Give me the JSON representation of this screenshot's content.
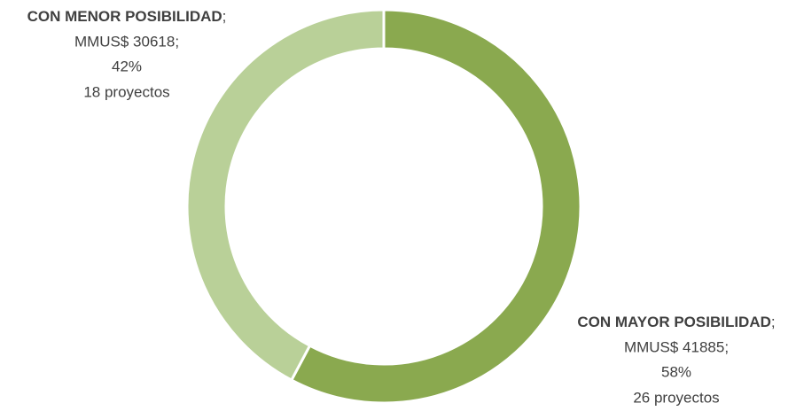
{
  "chart_data": {
    "type": "donut",
    "categories": [
      "CON MAYOR POSIBILIDAD",
      "CON MENOR POSIBILIDAD"
    ],
    "values": [
      41885,
      30618
    ],
    "value_labels": [
      "MMUS$ 41885;",
      "MMUS$ 30618;"
    ],
    "percent_labels": [
      "58%",
      "42%"
    ],
    "project_labels": [
      "26 proyectos",
      "18 proyectos"
    ],
    "label_separator": ";",
    "colors": [
      "#8aa94f",
      "#b9d098"
    ]
  }
}
